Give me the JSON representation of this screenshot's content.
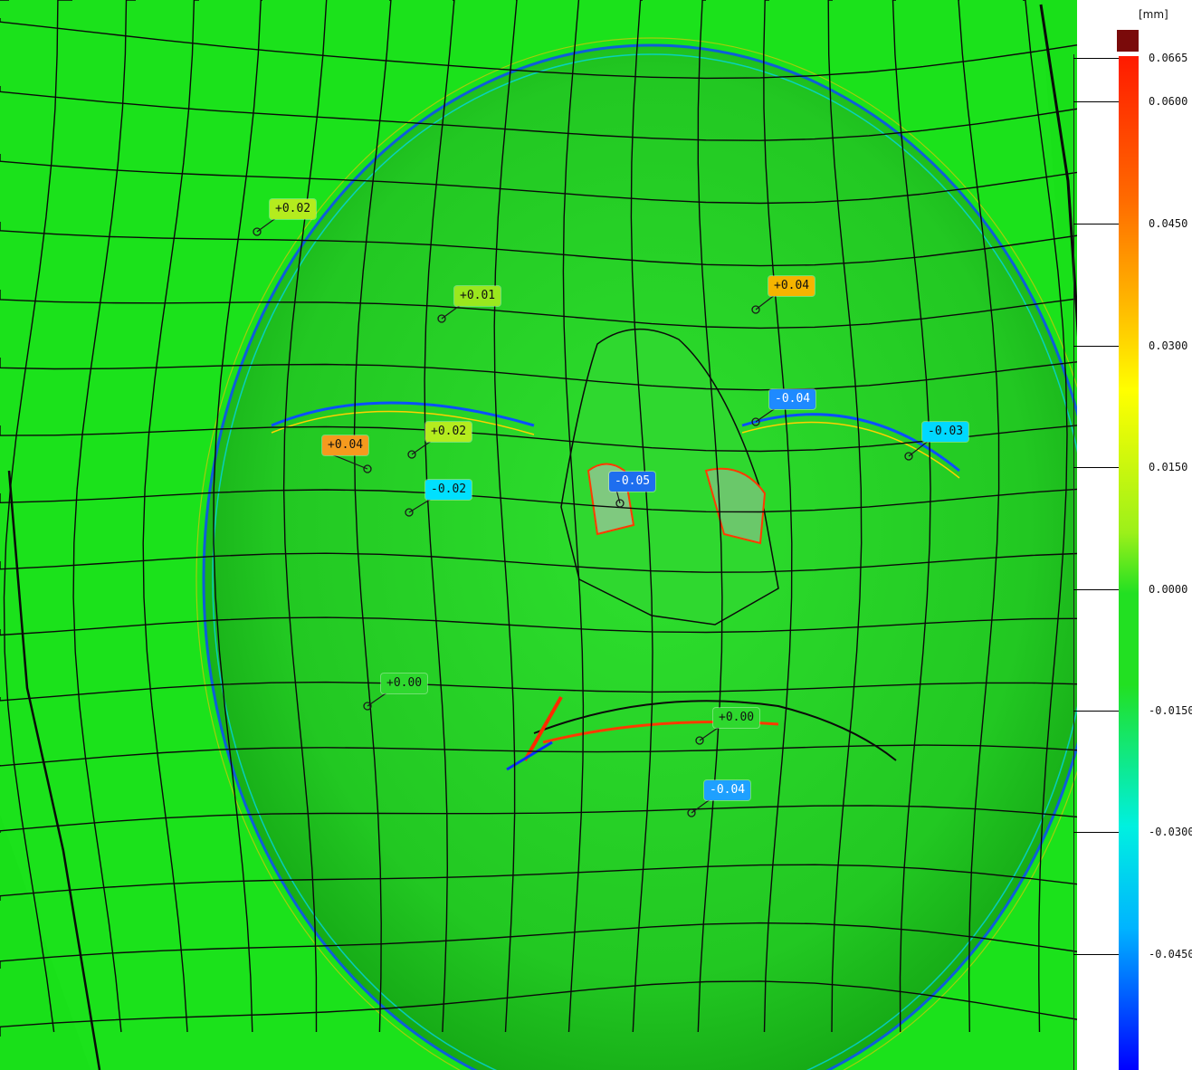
{
  "colors": {
    "surface": "#19e019",
    "mesh_line": "#0a0a0a",
    "scale_over": "#7a0a0a"
  },
  "legend": {
    "unit": "[mm]",
    "ticks": [
      "0.0665",
      "0.0600",
      "0.0450",
      "0.0300",
      "0.0150",
      "0.0000",
      "-0.0150",
      "-0.0300",
      "-0.0450"
    ],
    "scale_top": "#ff1a00",
    "scale_bottom": "#0000ff"
  },
  "callouts": [
    {
      "label": "+0.02",
      "color": "#b4ec1e"
    },
    {
      "label": "+0.01",
      "color": "#9ae81e"
    },
    {
      "label": "+0.04",
      "color": "#f5b400"
    },
    {
      "label": "-0.04",
      "color": "#1e8aff"
    },
    {
      "label": "-0.03",
      "color": "#00d8ff"
    },
    {
      "label": "+0.04",
      "color": "#f59a1e"
    },
    {
      "label": "+0.02",
      "color": "#b4ec1e"
    },
    {
      "label": "-0.02",
      "color": "#00e0ff"
    },
    {
      "label": "-0.05",
      "color": "#1e6eef"
    },
    {
      "label": "+0.00",
      "color": "#2ed82e"
    },
    {
      "label": "+0.00",
      "color": "#2ed82e"
    },
    {
      "label": "-0.04",
      "color": "#1ea0ff"
    }
  ]
}
